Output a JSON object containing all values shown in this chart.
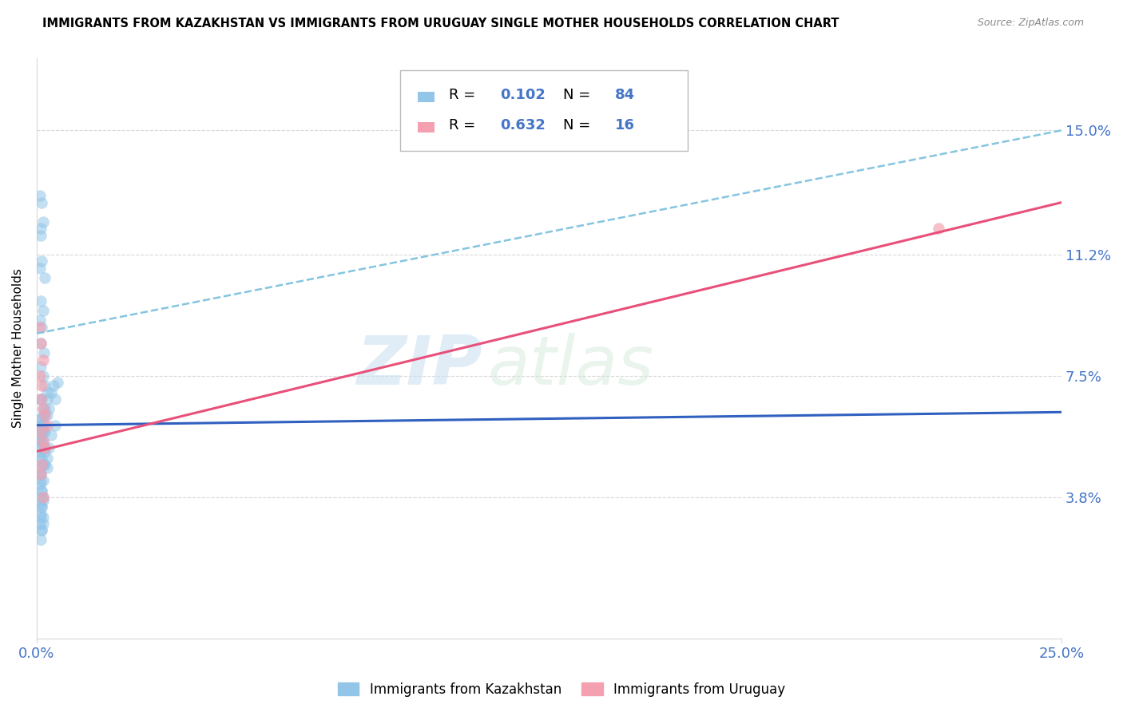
{
  "title": "IMMIGRANTS FROM KAZAKHSTAN VS IMMIGRANTS FROM URUGUAY SINGLE MOTHER HOUSEHOLDS CORRELATION CHART",
  "source": "Source: ZipAtlas.com",
  "ylabel": "Single Mother Households",
  "ytick_labels": [
    "3.8%",
    "7.5%",
    "11.2%",
    "15.0%"
  ],
  "ytick_values": [
    0.038,
    0.075,
    0.112,
    0.15
  ],
  "xtick_labels": [
    "0.0%",
    "25.0%"
  ],
  "xtick_values": [
    0.0,
    0.25
  ],
  "xlim": [
    0.0,
    0.25
  ],
  "ylim": [
    -0.005,
    0.172
  ],
  "watermark_zip": "ZIP",
  "watermark_atlas": "atlas",
  "blue_color": "#92C5E8",
  "pink_color": "#F4A0B0",
  "line_blue": "#3060C0",
  "line_pink": "#E8507A",
  "dash_line_color": "#85C5E0",
  "axis_label_color": "#4575C8",
  "grid_color": "#D8D8D8",
  "kazakhstan_points": [
    [
      0.0008,
      0.13
    ],
    [
      0.0012,
      0.128
    ],
    [
      0.001,
      0.12
    ],
    [
      0.0015,
      0.122
    ],
    [
      0.001,
      0.118
    ],
    [
      0.0012,
      0.11
    ],
    [
      0.0008,
      0.108
    ],
    [
      0.002,
      0.105
    ],
    [
      0.001,
      0.098
    ],
    [
      0.0015,
      0.095
    ],
    [
      0.0008,
      0.092
    ],
    [
      0.0012,
      0.09
    ],
    [
      0.001,
      0.085
    ],
    [
      0.0018,
      0.082
    ],
    [
      0.001,
      0.078
    ],
    [
      0.0015,
      0.075
    ],
    [
      0.002,
      0.072
    ],
    [
      0.0025,
      0.07
    ],
    [
      0.0008,
      0.068
    ],
    [
      0.0012,
      0.068
    ],
    [
      0.0015,
      0.065
    ],
    [
      0.002,
      0.065
    ],
    [
      0.0025,
      0.063
    ],
    [
      0.0008,
      0.062
    ],
    [
      0.001,
      0.06
    ],
    [
      0.0015,
      0.06
    ],
    [
      0.002,
      0.058
    ],
    [
      0.0012,
      0.058
    ],
    [
      0.0008,
      0.055
    ],
    [
      0.0015,
      0.055
    ],
    [
      0.001,
      0.053
    ],
    [
      0.002,
      0.053
    ],
    [
      0.0008,
      0.05
    ],
    [
      0.0012,
      0.05
    ],
    [
      0.0015,
      0.048
    ],
    [
      0.002,
      0.048
    ],
    [
      0.0025,
      0.047
    ],
    [
      0.0008,
      0.045
    ],
    [
      0.001,
      0.045
    ],
    [
      0.0015,
      0.043
    ],
    [
      0.0008,
      0.042
    ],
    [
      0.0012,
      0.04
    ],
    [
      0.001,
      0.038
    ],
    [
      0.0015,
      0.038
    ],
    [
      0.0008,
      0.036
    ],
    [
      0.0012,
      0.035
    ],
    [
      0.001,
      0.033
    ],
    [
      0.0015,
      0.032
    ],
    [
      0.0008,
      0.03
    ],
    [
      0.0012,
      0.028
    ],
    [
      0.0008,
      0.06
    ],
    [
      0.001,
      0.062
    ],
    [
      0.0012,
      0.058
    ],
    [
      0.0015,
      0.063
    ],
    [
      0.002,
      0.06
    ],
    [
      0.0008,
      0.057
    ],
    [
      0.001,
      0.055
    ],
    [
      0.0015,
      0.058
    ],
    [
      0.002,
      0.063
    ],
    [
      0.0025,
      0.068
    ],
    [
      0.003,
      0.065
    ],
    [
      0.0035,
      0.07
    ],
    [
      0.004,
      0.072
    ],
    [
      0.0045,
      0.068
    ],
    [
      0.005,
      0.073
    ],
    [
      0.0045,
      0.06
    ],
    [
      0.0035,
      0.057
    ],
    [
      0.003,
      0.053
    ],
    [
      0.0025,
      0.05
    ],
    [
      0.002,
      0.052
    ],
    [
      0.0015,
      0.048
    ],
    [
      0.001,
      0.047
    ],
    [
      0.001,
      0.043
    ],
    [
      0.0012,
      0.04
    ],
    [
      0.0015,
      0.037
    ],
    [
      0.0012,
      0.035
    ],
    [
      0.001,
      0.032
    ],
    [
      0.0015,
      0.03
    ],
    [
      0.0012,
      0.028
    ],
    [
      0.001,
      0.025
    ],
    [
      0.0012,
      0.055
    ],
    [
      0.0008,
      0.052
    ]
  ],
  "uruguay_points": [
    [
      0.0008,
      0.09
    ],
    [
      0.001,
      0.085
    ],
    [
      0.0015,
      0.08
    ],
    [
      0.0008,
      0.075
    ],
    [
      0.0012,
      0.072
    ],
    [
      0.001,
      0.068
    ],
    [
      0.0015,
      0.065
    ],
    [
      0.002,
      0.063
    ],
    [
      0.0025,
      0.06
    ],
    [
      0.001,
      0.058
    ],
    [
      0.0015,
      0.055
    ],
    [
      0.002,
      0.053
    ],
    [
      0.0012,
      0.048
    ],
    [
      0.001,
      0.045
    ],
    [
      0.0015,
      0.038
    ],
    [
      0.22,
      0.12
    ]
  ],
  "trendline_blue": {
    "x_start": 0.0,
    "y_start": 0.06,
    "x_end": 0.25,
    "y_end": 0.064
  },
  "trendline_pink": {
    "x_start": 0.0,
    "y_start": 0.052,
    "x_end": 0.25,
    "y_end": 0.128
  },
  "dashline_blue": {
    "x_start": 0.0,
    "y_start": 0.088,
    "x_end": 0.25,
    "y_end": 0.15
  }
}
